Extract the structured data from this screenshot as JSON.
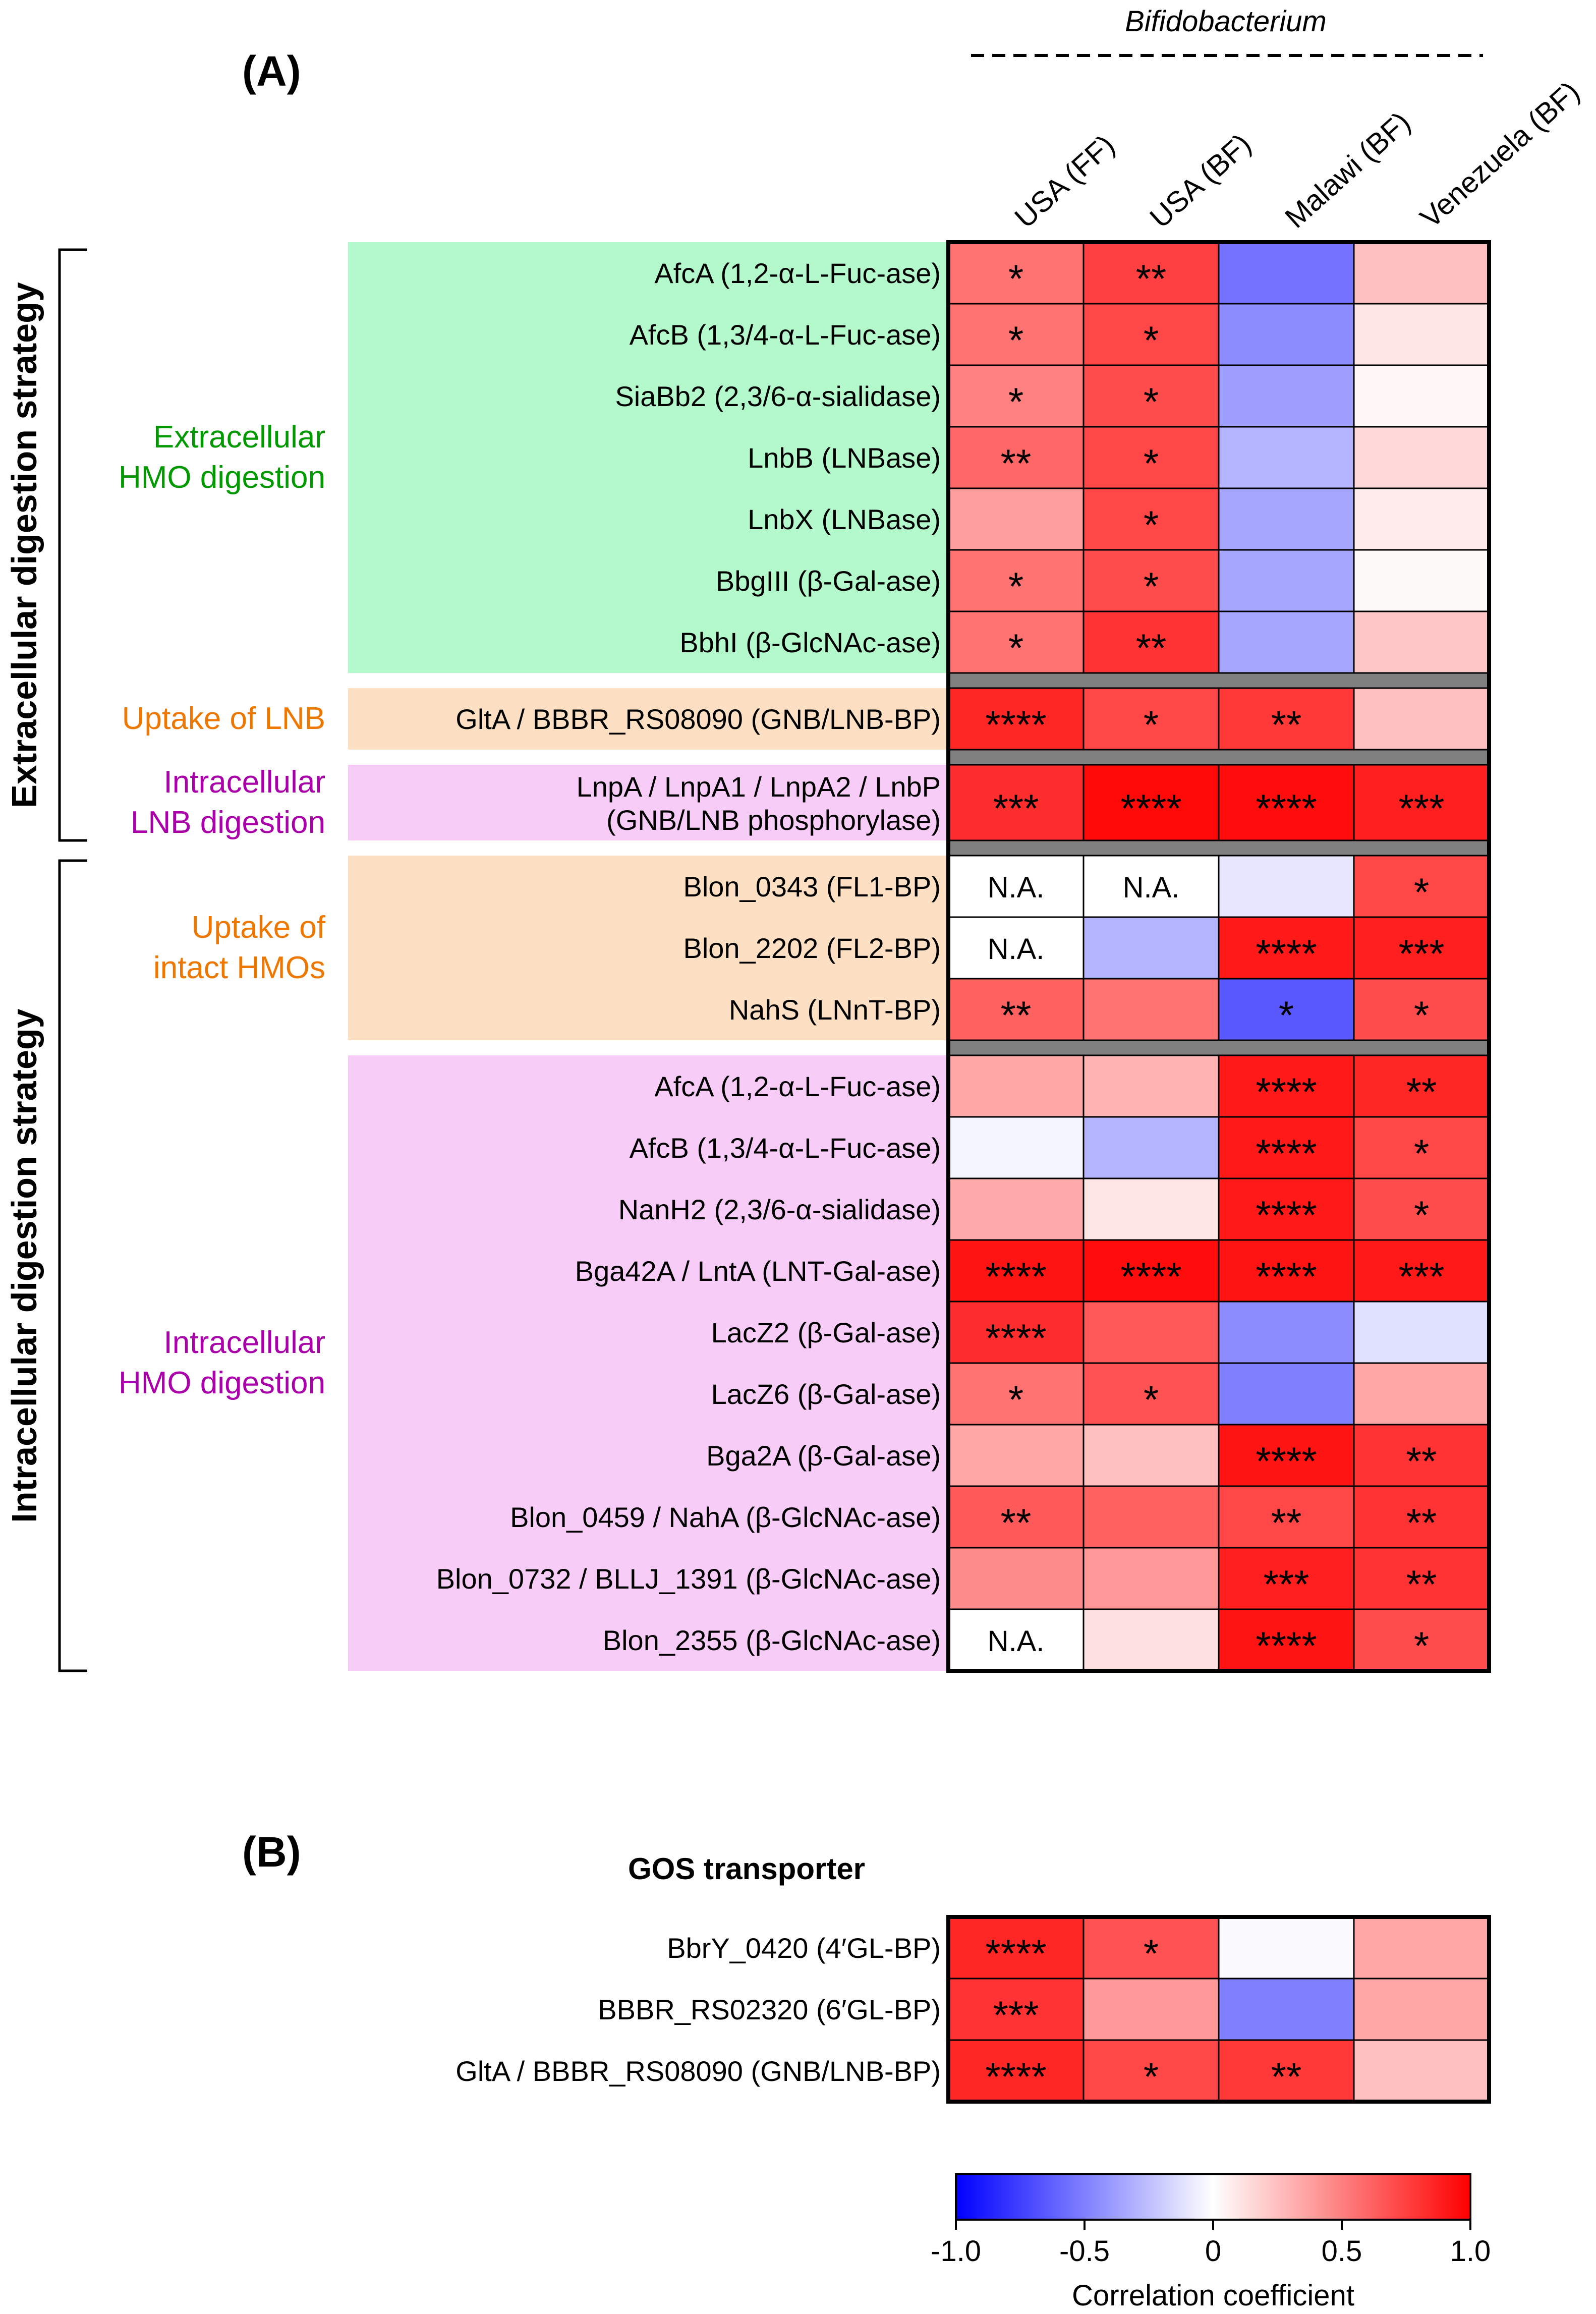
{
  "panel_a_label": "(A)",
  "panel_b_label": "(B)",
  "genus_label": "Bifidobacterium",
  "columns": [
    "USA (FF)",
    "USA (BF)",
    "Malawi (BF)",
    "Venezuela (BF)"
  ],
  "strategies": [
    "Extracellular digestion strategy",
    "Intracellular digestion strategy"
  ],
  "groups": [
    {
      "label_lines": [
        "Extracellular",
        "HMO digestion"
      ],
      "color": "#009900",
      "bg": "#b3f9cc"
    },
    {
      "label_lines": [
        "Uptake of LNB"
      ],
      "color": "#ee7700",
      "bg": "#fde0c3"
    },
    {
      "label_lines": [
        "Intracellular",
        "LNB digestion"
      ],
      "color": "#aa00aa",
      "bg": "#f7cdf7"
    },
    {
      "label_lines": [
        "Uptake of",
        "intact HMOs"
      ],
      "color": "#ee7700",
      "bg": "#fde0c3"
    },
    {
      "label_lines": [
        "Intracellular",
        "HMO digestion"
      ],
      "color": "#aa00aa",
      "bg": "#f7cdf7"
    }
  ],
  "panel_b_title": "GOS transporter",
  "colorbar": {
    "ticks": [
      "-1.0",
      "-0.5",
      "0",
      "0.5",
      "1.0"
    ],
    "tick_values": [
      -1.0,
      -0.5,
      0,
      0.5,
      1.0
    ],
    "label": "Correlation coefficient",
    "colors": [
      "#0000ff",
      "#ffffff",
      "#ff0000"
    ]
  },
  "chart_data": [
    {
      "type": "heatmap",
      "panel": "(A)",
      "columns": [
        "USA (FF)",
        "USA (BF)",
        "Malawi (BF)",
        "Venezuela (BF)"
      ],
      "value_range": [
        -1.0,
        1.0
      ],
      "rows": [
        {
          "label": "AfcA (1,2-α-L-Fuc-ase)",
          "group": 0,
          "values": [
            0.55,
            0.75,
            -0.55,
            0.25
          ],
          "marks": [
            "*",
            "**",
            "",
            ""
          ]
        },
        {
          "label": "AfcB (1,3/4-α-L-Fuc-ase)",
          "group": 0,
          "values": [
            0.55,
            0.72,
            -0.45,
            0.1
          ],
          "marks": [
            "*",
            "*",
            "",
            ""
          ]
        },
        {
          "label": "SiaBb2 (2,3/6-α-sialidase)",
          "group": 0,
          "values": [
            0.5,
            0.7,
            -0.38,
            0.03
          ],
          "marks": [
            "*",
            "*",
            "",
            ""
          ]
        },
        {
          "label": "LnbB (LNBase)",
          "group": 0,
          "values": [
            0.6,
            0.72,
            -0.3,
            0.15
          ],
          "marks": [
            "**",
            "*",
            "",
            ""
          ]
        },
        {
          "label": "LnbX (LNBase)",
          "group": 0,
          "values": [
            0.38,
            0.72,
            -0.35,
            0.08
          ],
          "marks": [
            "",
            "*",
            "",
            ""
          ]
        },
        {
          "label": "BbgIII (β-Gal-ase)",
          "group": 0,
          "values": [
            0.55,
            0.7,
            -0.35,
            0.02
          ],
          "marks": [
            "*",
            "*",
            "",
            ""
          ]
        },
        {
          "label": "BbhI (β-GlcNAc-ase)",
          "group": 0,
          "values": [
            0.55,
            0.8,
            -0.35,
            0.22
          ],
          "marks": [
            "*",
            "**",
            "",
            ""
          ]
        },
        {
          "label": "GltA / BBBR_RS08090 (GNB/LNB-BP)",
          "group": 1,
          "values": [
            0.85,
            0.72,
            0.78,
            0.25
          ],
          "marks": [
            "****",
            "*",
            "**",
            ""
          ]
        },
        {
          "label": "LnpA / LnpA1 / LnpA2 / LnbP (GNB/LNB phosphorylase)",
          "group": 2,
          "values": [
            0.82,
            0.97,
            0.95,
            0.88
          ],
          "marks": [
            "***",
            "****",
            "****",
            "***"
          ]
        },
        {
          "label": "Blon_0343 (FL1-BP)",
          "group": 3,
          "values": [
            null,
            null,
            -0.1,
            0.72
          ],
          "marks": [
            "N.A.",
            "N.A.",
            "",
            "*"
          ]
        },
        {
          "label": "Blon_2202 (FL2-BP)",
          "group": 3,
          "values": [
            null,
            -0.3,
            0.9,
            0.88
          ],
          "marks": [
            "N.A.",
            "",
            "****",
            "***"
          ]
        },
        {
          "label": "NahS (LNnT-BP)",
          "group": 3,
          "values": [
            0.62,
            0.55,
            -0.65,
            0.7
          ],
          "marks": [
            "**",
            "",
            "*",
            "*"
          ]
        },
        {
          "label": "AfcA (1,2-α-L-Fuc-ase)",
          "group": 4,
          "values": [
            0.35,
            0.3,
            0.9,
            0.85
          ],
          "marks": [
            "",
            "",
            "****",
            "**"
          ]
        },
        {
          "label": "AfcB (1,3/4-α-L-Fuc-ase)",
          "group": 4,
          "values": [
            -0.04,
            -0.3,
            0.9,
            0.72
          ],
          "marks": [
            "",
            "",
            "****",
            "*"
          ]
        },
        {
          "label": "NanH2 (2,3/6-α-sialidase)",
          "group": 4,
          "values": [
            0.33,
            0.1,
            0.9,
            0.7
          ],
          "marks": [
            "",
            "",
            "****",
            "*"
          ]
        },
        {
          "label": "Bga42A / LntA (LNT-Gal-ase)",
          "group": 4,
          "values": [
            0.92,
            0.95,
            0.92,
            0.9
          ],
          "marks": [
            "****",
            "****",
            "****",
            "***"
          ]
        },
        {
          "label": "LacZ2 (β-Gal-ase)",
          "group": 4,
          "values": [
            0.82,
            0.65,
            -0.45,
            -0.12
          ],
          "marks": [
            "****",
            "",
            "",
            ""
          ]
        },
        {
          "label": "LacZ6 (β-Gal-ase)",
          "group": 4,
          "values": [
            0.55,
            0.68,
            -0.5,
            0.35
          ],
          "marks": [
            "*",
            "*",
            "",
            ""
          ]
        },
        {
          "label": "Bga2A (β-Gal-ase)",
          "group": 4,
          "values": [
            0.35,
            0.25,
            0.92,
            0.8
          ],
          "marks": [
            "",
            "",
            "****",
            "**"
          ]
        },
        {
          "label": "Blon_0459 / NahA (β-GlcNAc-ase)",
          "group": 4,
          "values": [
            0.65,
            0.62,
            0.72,
            0.8
          ],
          "marks": [
            "**",
            "",
            "**",
            "**"
          ]
        },
        {
          "label": "Blon_0732 / BLLJ_1391 (β-GlcNAc-ase)",
          "group": 4,
          "values": [
            0.45,
            0.4,
            0.88,
            0.8
          ],
          "marks": [
            "",
            "",
            "***",
            "**"
          ]
        },
        {
          "label": "Blon_2355 (β-GlcNAc-ase)",
          "group": 4,
          "values": [
            null,
            0.12,
            0.92,
            0.7
          ],
          "marks": [
            "N.A.",
            "",
            "****",
            "*"
          ]
        }
      ]
    },
    {
      "type": "heatmap",
      "panel": "(B)",
      "title": "GOS transporter",
      "columns": [
        "USA (FF)",
        "USA (BF)",
        "Malawi (BF)",
        "Venezuela (BF)"
      ],
      "value_range": [
        -1.0,
        1.0
      ],
      "rows": [
        {
          "label": "BbrY_0420 (4′GL-BP)",
          "values": [
            0.85,
            0.68,
            -0.02,
            0.35
          ],
          "marks": [
            "****",
            "*",
            "",
            ""
          ]
        },
        {
          "label": "BBBR_RS02320 (6′GL-BP)",
          "values": [
            0.8,
            0.4,
            -0.5,
            0.35
          ],
          "marks": [
            "***",
            "",
            "",
            ""
          ]
        },
        {
          "label": "GltA / BBBR_RS08090 (GNB/LNB-BP)",
          "values": [
            0.85,
            0.72,
            0.78,
            0.25
          ],
          "marks": [
            "****",
            "*",
            "**",
            ""
          ]
        }
      ]
    }
  ]
}
